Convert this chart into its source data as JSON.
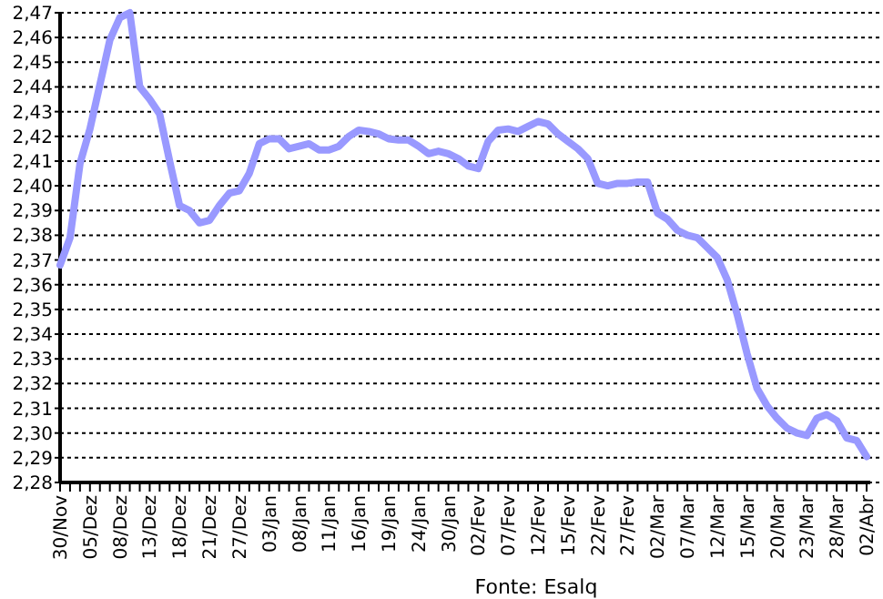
{
  "chart_data": {
    "type": "line",
    "categories": [
      "30/Nov",
      null,
      null,
      "05/Dez",
      null,
      null,
      "08/Dez",
      null,
      null,
      "13/Dez",
      null,
      null,
      "18/Dez",
      null,
      null,
      "21/Dez",
      null,
      null,
      "27/Dez",
      null,
      null,
      "03/Jan",
      null,
      null,
      "08/Jan",
      null,
      null,
      "11/Jan",
      null,
      null,
      "16/Jan",
      null,
      null,
      "19/Jan",
      null,
      null,
      "24/Jan",
      null,
      null,
      "30/Jan",
      null,
      null,
      "02/Fev",
      null,
      null,
      "07/Fev",
      null,
      null,
      "12/Fev",
      null,
      null,
      "15/Fev",
      null,
      null,
      "22/Fev",
      null,
      null,
      "27/Fev",
      null,
      null,
      "02/Mar",
      null,
      null,
      "07/Mar",
      null,
      null,
      "12/Mar",
      null,
      null,
      "15/Mar",
      null,
      null,
      "20/Mar",
      null,
      null,
      "23/Mar",
      null,
      null,
      "28/Mar",
      null,
      null,
      "02/Abr"
    ],
    "series": [
      {
        "color": "#9999ff",
        "values": [
          2.368,
          2.379,
          2.409,
          2.423,
          2.441,
          2.459,
          2.468,
          2.47,
          2.44,
          2.435,
          2.429,
          2.41,
          2.392,
          2.39,
          2.385,
          2.386,
          2.392,
          2.397,
          2.398,
          2.405,
          2.417,
          2.419,
          2.419,
          2.415,
          2.416,
          2.417,
          2.4145,
          2.4145,
          2.416,
          2.42,
          2.4225,
          2.422,
          2.421,
          2.419,
          2.4185,
          2.4185,
          2.416,
          2.413,
          2.414,
          2.413,
          2.411,
          2.408,
          2.407,
          2.418,
          2.4225,
          2.423,
          2.422,
          2.424,
          2.426,
          2.425,
          2.421,
          2.418,
          2.415,
          2.411,
          2.401,
          2.4,
          2.401,
          2.401,
          2.4015,
          2.4015,
          2.389,
          2.3865,
          2.382,
          2.38,
          2.379,
          2.375,
          2.371,
          2.362,
          2.348,
          2.332,
          2.318,
          2.311,
          2.306,
          2.302,
          2.3,
          2.299,
          2.306,
          2.3075,
          2.305,
          2.298,
          2.297,
          2.2905
        ]
      }
    ],
    "ylim": [
      2.28,
      2.47
    ],
    "yticks": [
      {
        "value": 2.28,
        "label": "2,28"
      },
      {
        "value": 2.29,
        "label": "2,29"
      },
      {
        "value": 2.3,
        "label": "2,30"
      },
      {
        "value": 2.31,
        "label": "2,31"
      },
      {
        "value": 2.32,
        "label": "2,32"
      },
      {
        "value": 2.33,
        "label": "2,33"
      },
      {
        "value": 2.34,
        "label": "2,34"
      },
      {
        "value": 2.35,
        "label": "2,35"
      },
      {
        "value": 2.36,
        "label": "2,36"
      },
      {
        "value": 2.37,
        "label": "2,37"
      },
      {
        "value": 2.38,
        "label": "2,38"
      },
      {
        "value": 2.39,
        "label": "2,39"
      },
      {
        "value": 2.4,
        "label": "2,40"
      },
      {
        "value": 2.41,
        "label": "2,41"
      },
      {
        "value": 2.42,
        "label": "2,42"
      },
      {
        "value": 2.43,
        "label": "2,43"
      },
      {
        "value": 2.44,
        "label": "2,44"
      },
      {
        "value": 2.45,
        "label": "2,45"
      },
      {
        "value": 2.46,
        "label": "2,46"
      },
      {
        "value": 2.47,
        "label": "2,47"
      }
    ],
    "grid": "y",
    "line_style": "solid",
    "annotations": [
      "Fonte: Esalq"
    ]
  }
}
